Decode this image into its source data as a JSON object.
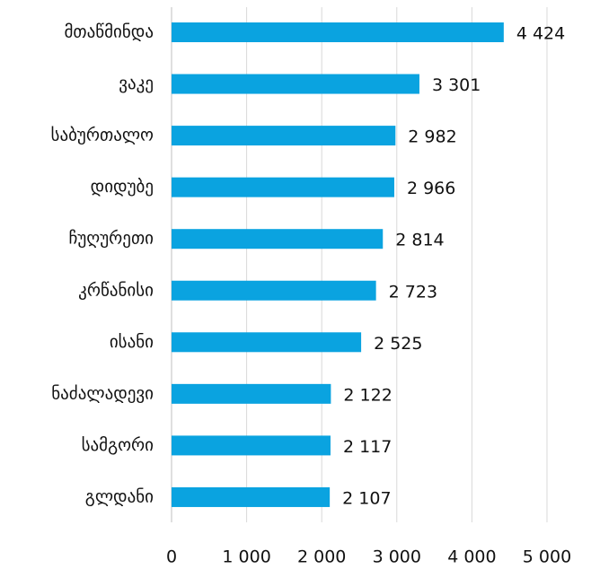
{
  "chart_data": {
    "type": "hbar",
    "categories": [
      "მთაწმინდა",
      "ვაკე",
      "საბურთალო",
      "დიდუბე",
      "ჩუღურეთი",
      "კრწანისი",
      "ისანი",
      "ნაძალადევი",
      "სამგორი",
      "გლდანი"
    ],
    "values": [
      4424,
      3301,
      2982,
      2966,
      2814,
      2723,
      2525,
      2122,
      2117,
      2107
    ],
    "value_labels": [
      "4 424",
      "3 301",
      "2 982",
      "2 966",
      "2 814",
      "2 723",
      "2 525",
      "2 122",
      "2 117",
      "2 107"
    ],
    "color": "#0aa3e0",
    "xlim": [
      0,
      5000
    ],
    "xticks": [
      0,
      {
        "value": 1000,
        "label": "1 000"
      },
      {
        "value": 2000,
        "label": "2 000"
      },
      {
        "value": 3000,
        "label": "3 000"
      },
      {
        "value": 4000,
        "label": "4 000"
      },
      {
        "value": 5000,
        "label": "5 000"
      }
    ],
    "grid": true
  }
}
